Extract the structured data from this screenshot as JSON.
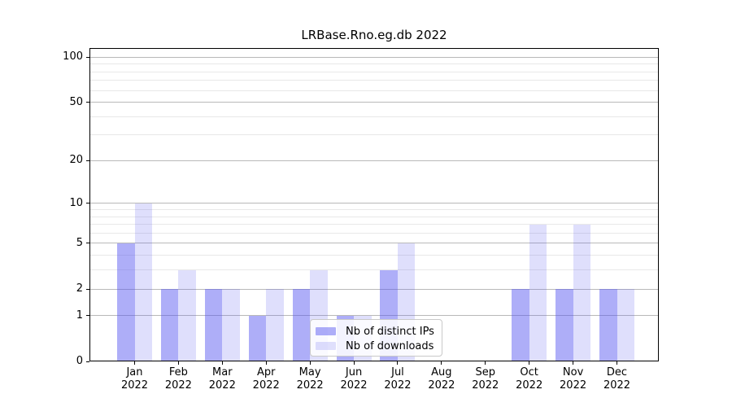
{
  "title": "LRBase.Rno.eg.db 2022",
  "chart_data": {
    "type": "bar",
    "title": "LRBase.Rno.eg.db 2022",
    "categories": [
      "Jan",
      "Feb",
      "Mar",
      "Apr",
      "May",
      "Jun",
      "Jul",
      "Aug",
      "Sep",
      "Oct",
      "Nov",
      "Dec"
    ],
    "year_label": "2022",
    "series": [
      {
        "name": "Nb of distinct IPs",
        "color": "rgba(85,85,240,0.48)",
        "values": [
          5,
          2,
          2,
          1,
          2,
          1,
          3,
          0,
          0,
          2,
          2,
          2
        ]
      },
      {
        "name": "Nb of downloads",
        "color": "rgba(85,85,240,0.19)",
        "values": [
          10,
          3,
          2,
          2,
          3,
          1,
          5,
          0,
          0,
          7,
          7,
          2
        ]
      }
    ],
    "xlabel": "",
    "ylabel": "",
    "y_axis": {
      "scale": "log1p",
      "major_ticks": [
        0,
        1,
        2,
        5,
        10,
        20,
        50,
        100
      ],
      "minor_ticks": [
        3,
        4,
        6,
        7,
        8,
        9,
        30,
        40,
        60,
        70,
        80,
        90
      ],
      "ylim": [
        0,
        115
      ]
    },
    "grid": true,
    "legend": {
      "position": "lower center",
      "entries": [
        "Nb of distinct IPs",
        "Nb of downloads"
      ]
    },
    "colors": {
      "major_grid": "#b9b9b9",
      "minor_grid": "#e8e8e8",
      "axis": "#000000",
      "background": "#ffffff"
    }
  }
}
